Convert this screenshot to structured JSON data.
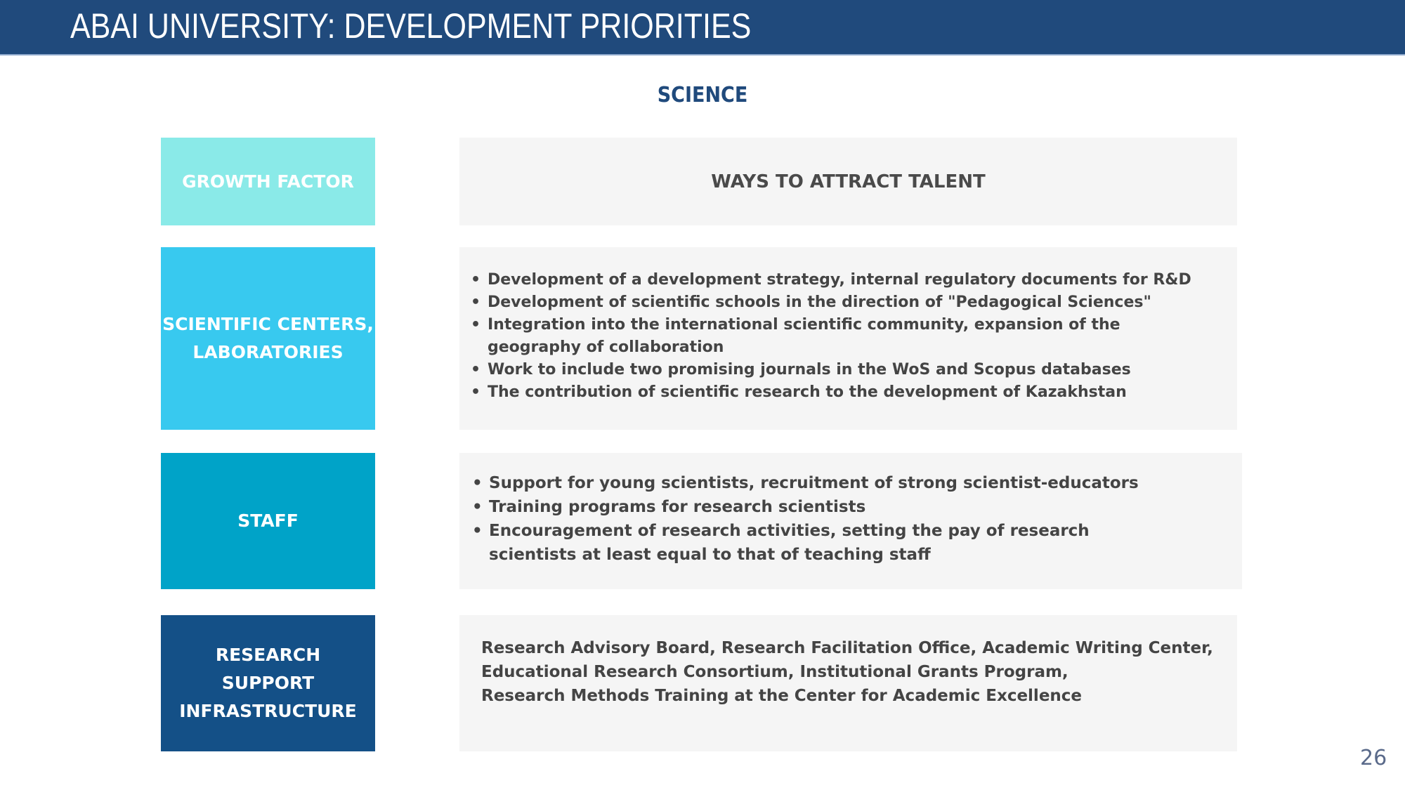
{
  "header": {
    "title": "ABAI UNIVERSITY: DEVELOPMENT PRIORITIES"
  },
  "section_title": "SCIENCE",
  "table": {
    "left_header": "GROWTH FACTOR",
    "right_header": "WAYS TO ATTRACT TALENT",
    "rows": [
      {
        "factor": [
          "SCIENTIFIC CENTERS,",
          "LABORATORIES"
        ],
        "items": [
          "Development of a development strategy, internal regulatory documents for R&D",
          "Development of scientific schools in the direction of \"Pedagogical Sciences\"",
          "Integration into the international scientific community, expansion of the geography of collaboration",
          "Work to include two promising journals in the WoS and Scopus databases",
          "The contribution of scientific research to the development of Kazakhstan"
        ]
      },
      {
        "factor": [
          "STAFF"
        ],
        "items": [
          "Support for young scientists, recruitment of strong scientist-educators",
          "Training programs for research scientists",
          "Encouragement of research activities, setting the pay of research scientists at least equal to that of teaching staff"
        ]
      },
      {
        "factor": [
          "RESEARCH",
          "SUPPORT",
          "INFRASTRUCTURE"
        ],
        "lines": [
          "Research Advisory Board, Research Facilitation Office, Academic Writing Center,",
          "Educational Research Consortium, Institutional Grants Program,",
          "Research Methods Training at the Center for Academic Excellence"
        ]
      }
    ]
  },
  "page_number": "26",
  "colors": {
    "header": "#204a7c",
    "growth": "#8aeae8",
    "centers": "#38c9ef",
    "staff": "#00a3c8",
    "infra": "#145087",
    "panel": "#f5f5f5"
  }
}
